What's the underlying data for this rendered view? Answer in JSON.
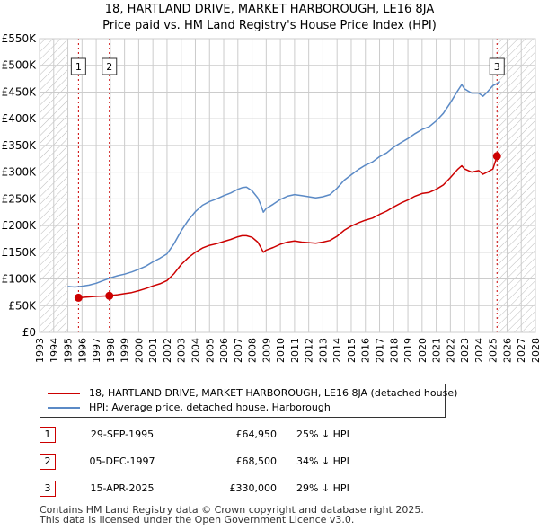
{
  "colors": {
    "price_paid": "#cc0000",
    "hpi": "#5b8ac6",
    "hatch": "#bbbbbb",
    "grid": "#cccccc",
    "marker_line": "#cc0000"
  },
  "chart_data": {
    "type": "line",
    "title": "18, HARTLAND DRIVE, MARKET HARBOROUGH, LE16 8JA",
    "subtitle": "Price paid vs. HM Land Registry's House Price Index (HPI)",
    "xlim": [
      1993,
      2028
    ],
    "ylim": [
      0,
      550000
    ],
    "x_ticks": [
      "1993",
      "1994",
      "1995",
      "1996",
      "1997",
      "1998",
      "1999",
      "2000",
      "2001",
      "2002",
      "2003",
      "2004",
      "2005",
      "2006",
      "2007",
      "2008",
      "2009",
      "2010",
      "2011",
      "2012",
      "2013",
      "2014",
      "2015",
      "2016",
      "2017",
      "2018",
      "2019",
      "2020",
      "2021",
      "2022",
      "2023",
      "2024",
      "2025",
      "2026",
      "2027",
      "2028"
    ],
    "y_ticks": [
      "£0",
      "£50K",
      "£100K",
      "£150K",
      "£200K",
      "£250K",
      "£300K",
      "£350K",
      "£400K",
      "£450K",
      "£500K",
      "£550K"
    ],
    "grid": true,
    "hatched_ranges": [
      [
        1993,
        1995.0
      ],
      [
        2025.29,
        2028
      ]
    ],
    "series": [
      {
        "name": "18, HARTLAND DRIVE, MARKET HARBOROUGH, LE16 8JA (detached house)",
        "x": [
          1995.75,
          1996.0,
          1996.5,
          1997.0,
          1997.5,
          1997.93,
          1998.0,
          1998.5,
          1999.0,
          1999.5,
          2000.0,
          2000.5,
          2001.0,
          2001.5,
          2002.0,
          2002.5,
          2003.0,
          2003.5,
          2004.0,
          2004.5,
          2005.0,
          2005.5,
          2006.0,
          2006.5,
          2007.0,
          2007.3,
          2007.6,
          2008.0,
          2008.4,
          2008.6,
          2008.8,
          2009.0,
          2009.5,
          2010.0,
          2010.5,
          2011.0,
          2011.5,
          2012.0,
          2012.5,
          2013.0,
          2013.5,
          2014.0,
          2014.5,
          2015.0,
          2015.5,
          2016.0,
          2016.5,
          2017.0,
          2017.5,
          2018.0,
          2018.5,
          2019.0,
          2019.5,
          2020.0,
          2020.5,
          2021.0,
          2021.5,
          2022.0,
          2022.5,
          2022.8,
          2023.0,
          2023.5,
          2024.0,
          2024.3,
          2024.6,
          2025.0,
          2025.29
        ],
        "values": [
          64950,
          65500,
          66500,
          67500,
          68000,
          68500,
          69000,
          70500,
          72500,
          74500,
          78000,
          82000,
          87000,
          91000,
          97000,
          110000,
          127000,
          140000,
          150000,
          158000,
          163000,
          166000,
          170000,
          174000,
          179000,
          181000,
          181000,
          178000,
          169000,
          160000,
          150000,
          154000,
          159000,
          165000,
          169000,
          171000,
          169000,
          168000,
          167000,
          169000,
          172000,
          180000,
          191000,
          199000,
          205000,
          210000,
          214000,
          221000,
          227000,
          235000,
          242000,
          248000,
          255000,
          260000,
          262000,
          268000,
          276000,
          290000,
          305000,
          312000,
          306000,
          300000,
          303000,
          296000,
          300000,
          306000,
          330000
        ]
      },
      {
        "name": "HPI: Average price, detached house, Harborough",
        "x": [
          1995.0,
          1995.5,
          1996.0,
          1996.5,
          1997.0,
          1997.5,
          1998.0,
          1998.5,
          1999.0,
          1999.5,
          2000.0,
          2000.5,
          2001.0,
          2001.5,
          2002.0,
          2002.5,
          2003.0,
          2003.5,
          2004.0,
          2004.5,
          2005.0,
          2005.5,
          2006.0,
          2006.5,
          2007.0,
          2007.3,
          2007.6,
          2008.0,
          2008.4,
          2008.6,
          2008.8,
          2009.0,
          2009.5,
          2010.0,
          2010.5,
          2011.0,
          2011.5,
          2012.0,
          2012.5,
          2013.0,
          2013.5,
          2014.0,
          2014.5,
          2015.0,
          2015.5,
          2016.0,
          2016.5,
          2017.0,
          2017.5,
          2018.0,
          2018.5,
          2019.0,
          2019.5,
          2020.0,
          2020.5,
          2021.0,
          2021.5,
          2022.0,
          2022.5,
          2022.8,
          2023.0,
          2023.5,
          2024.0,
          2024.3,
          2024.6,
          2025.0,
          2025.29,
          2025.5
        ],
        "values": [
          86000,
          85000,
          86500,
          88500,
          92000,
          97000,
          102000,
          106000,
          109000,
          113000,
          118000,
          124000,
          132000,
          139000,
          147000,
          166000,
          190000,
          210000,
          226000,
          238000,
          245000,
          250000,
          256000,
          261000,
          268000,
          271000,
          272000,
          265000,
          252000,
          240000,
          225000,
          232000,
          240000,
          249000,
          255000,
          258000,
          256000,
          254000,
          252000,
          254000,
          258000,
          270000,
          285000,
          295000,
          305000,
          313000,
          319000,
          329000,
          336000,
          347000,
          355000,
          363000,
          372000,
          380000,
          385000,
          396000,
          410000,
          430000,
          452000,
          464000,
          456000,
          448000,
          448000,
          442000,
          450000,
          462000,
          466000,
          470000
        ]
      }
    ],
    "sale_markers": [
      {
        "label": "1",
        "x": 1995.75,
        "price": 64950
      },
      {
        "label": "2",
        "x": 1997.93,
        "price": 68500
      },
      {
        "label": "3",
        "x": 2025.29,
        "price": 330000
      }
    ]
  },
  "legend": {
    "price_label": "18, HARTLAND DRIVE, MARKET HARBOROUGH, LE16 8JA (detached house)",
    "hpi_label": "HPI: Average price, detached house, Harborough"
  },
  "sales": [
    {
      "num": "1",
      "date": "29-SEP-1995",
      "price": "£64,950",
      "hpi": "25% ↓ HPI"
    },
    {
      "num": "2",
      "date": "05-DEC-1997",
      "price": "£68,500",
      "hpi": "34% ↓ HPI"
    },
    {
      "num": "3",
      "date": "15-APR-2025",
      "price": "£330,000",
      "hpi": "29% ↓ HPI"
    }
  ],
  "footer": {
    "line1": "Contains HM Land Registry data © Crown copyright and database right 2025.",
    "line2": "This data is licensed under the Open Government Licence v3.0."
  }
}
